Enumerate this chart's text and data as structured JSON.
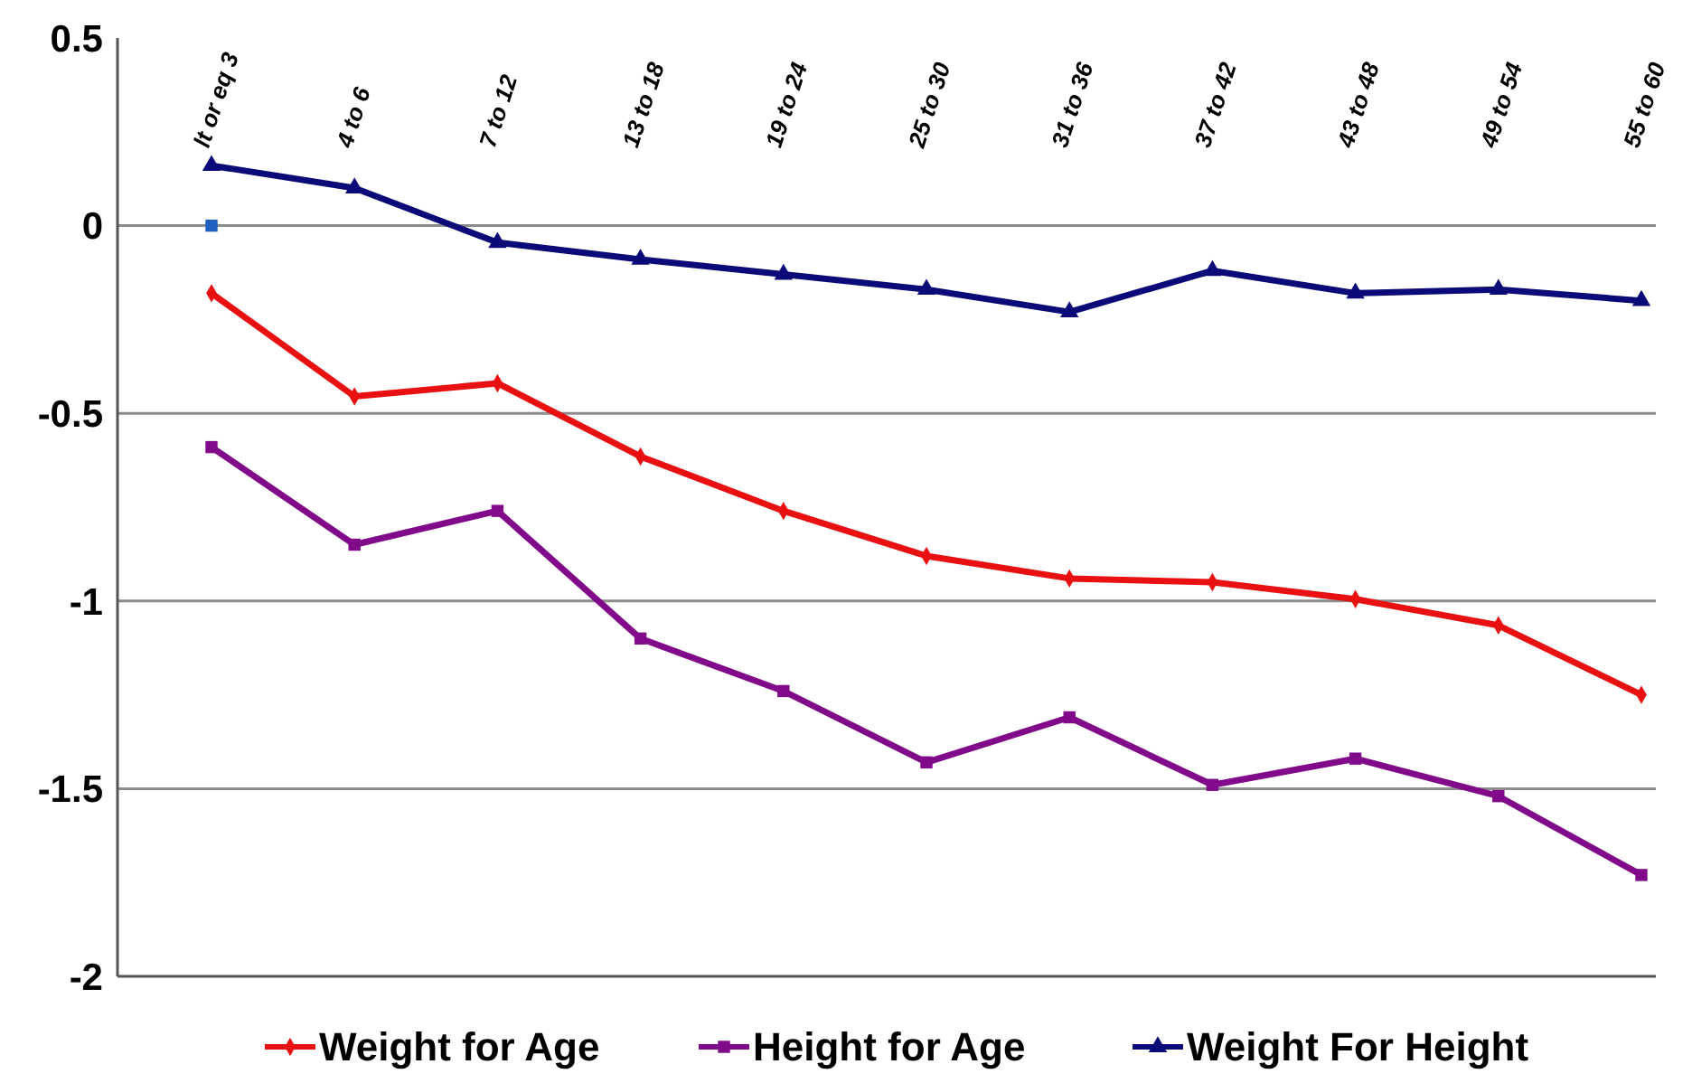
{
  "chart_data": {
    "type": "line",
    "categories": [
      "lt or eq 3",
      "4 to 6",
      "7 to 12",
      "13 to 18",
      "19 to 24",
      "25 to 30",
      "31 to 36",
      "37 to 42",
      "43 to 48",
      "49 to 54",
      "55 to 60"
    ],
    "series": [
      {
        "name": "Weight for Age",
        "color": "#e81010",
        "marker": "diamond",
        "values": [
          -0.18,
          -0.455,
          -0.42,
          -0.615,
          -0.76,
          -0.88,
          -0.94,
          -0.95,
          -0.995,
          -1.065,
          -1.25
        ]
      },
      {
        "name": "Height for Age",
        "color": "#800a8a",
        "marker": "square",
        "values": [
          -0.59,
          -0.85,
          -0.76,
          -1.1,
          -1.24,
          -1.43,
          -1.31,
          -1.49,
          -1.42,
          -1.52,
          -1.73
        ]
      },
      {
        "name": "Weight For Height",
        "color": "#0a0a78",
        "marker": "triangle",
        "values": [
          0.16,
          0.1,
          -0.045,
          -0.09,
          -0.13,
          -0.17,
          -0.23,
          -0.12,
          -0.18,
          -0.17,
          -0.2
        ]
      },
      {
        "type": "scatter",
        "color": "#1f5fbf",
        "marker": "square",
        "values": [
          0,
          null,
          null,
          null,
          null,
          null,
          null,
          null,
          null,
          null,
          null
        ]
      }
    ],
    "ylim": [
      -2,
      0.5
    ],
    "yticks": [
      -2,
      -1.5,
      -1,
      -0.5,
      0,
      0.5
    ],
    "grid": "y",
    "legend": "bottom"
  }
}
